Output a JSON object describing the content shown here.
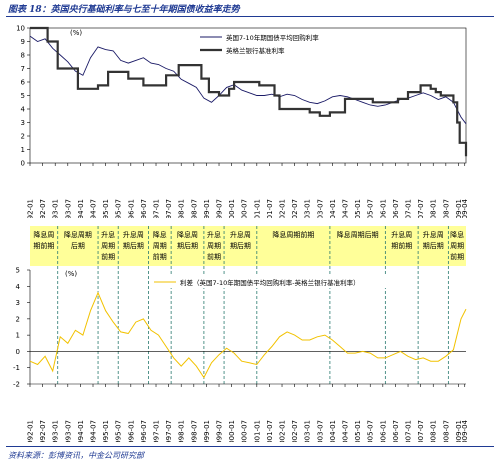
{
  "header": {
    "title": "图表 18：英国央行基础利率与七至十年期国债收益率走势"
  },
  "footer": {
    "source": "资料来源：彭博资讯，中金公司研究部"
  },
  "colors": {
    "rate_line": "#1a1a66",
    "base_rate": "#333333",
    "spread": "#f2c200",
    "band": "#ffff99",
    "divider": "#2a7a70"
  },
  "chart_data": [
    {
      "type": "line",
      "title": "",
      "unit_label": "(%)",
      "ylim": [
        0,
        10
      ],
      "yticks": [
        0,
        1,
        2,
        3,
        4,
        5,
        6,
        7,
        8,
        9,
        10
      ],
      "xlim": [
        1992.0,
        2009.3
      ],
      "xticks": [
        "1992-01",
        "1992-07",
        "1993-01",
        "1993-07",
        "1994-01",
        "1994-07",
        "1995-01",
        "1995-07",
        "1996-01",
        "1996-07",
        "1997-01",
        "1997-07",
        "1998-01",
        "1998-07",
        "1999-01",
        "1999-07",
        "2000-01",
        "2000-07",
        "2001-01",
        "2001-07",
        "2002-01",
        "2002-07",
        "2003-01",
        "2003-07",
        "2004-01",
        "2004-07",
        "2005-01",
        "2005-07",
        "2006-01",
        "2006-07",
        "2007-01",
        "2007-07",
        "2008-01",
        "2008-07",
        "2009-01",
        "2009-04"
      ],
      "series": [
        {
          "name": "英国7-10年期国债平均回购利率",
          "x": [
            1992.0,
            1992.3,
            1992.6,
            1992.9,
            1993.2,
            1993.5,
            1993.8,
            1994.1,
            1994.4,
            1994.7,
            1995.0,
            1995.3,
            1995.6,
            1995.9,
            1996.2,
            1996.5,
            1996.8,
            1997.1,
            1997.4,
            1997.7,
            1998.0,
            1998.3,
            1998.6,
            1998.9,
            1999.2,
            1999.5,
            1999.8,
            2000.1,
            2000.4,
            2000.7,
            2001.0,
            2001.3,
            2001.6,
            2001.9,
            2002.2,
            2002.5,
            2002.8,
            2003.1,
            2003.4,
            2003.7,
            2004.0,
            2004.3,
            2004.6,
            2004.9,
            2005.2,
            2005.5,
            2005.8,
            2006.1,
            2006.4,
            2006.7,
            2007.0,
            2007.3,
            2007.6,
            2007.9,
            2008.2,
            2008.5,
            2008.8,
            2009.1,
            2009.3
          ],
          "values": [
            9.4,
            9.0,
            9.2,
            8.5,
            8.0,
            7.5,
            6.8,
            6.5,
            7.8,
            8.6,
            8.4,
            8.3,
            7.6,
            7.4,
            7.6,
            7.8,
            7.4,
            7.3,
            7.0,
            6.8,
            6.2,
            5.9,
            5.6,
            4.8,
            4.5,
            5.0,
            5.6,
            5.8,
            5.4,
            5.2,
            5.0,
            5.0,
            5.1,
            4.9,
            5.1,
            5.0,
            4.7,
            4.5,
            4.4,
            4.6,
            4.9,
            5.0,
            4.9,
            4.7,
            4.5,
            4.3,
            4.2,
            4.3,
            4.5,
            4.7,
            4.8,
            5.0,
            5.2,
            5.0,
            4.7,
            4.9,
            4.5,
            3.4,
            2.9
          ]
        },
        {
          "name": "英格兰银行基准利率",
          "x": [
            1992.0,
            1992.7,
            1993.1,
            1993.9,
            1994.7,
            1995.1,
            1995.9,
            1996.5,
            1997.4,
            1997.9,
            1998.8,
            1999.1,
            1999.5,
            1999.9,
            2000.1,
            2001.1,
            2001.7,
            2001.9,
            2003.1,
            2003.5,
            2003.9,
            2004.5,
            2005.6,
            2006.6,
            2007.0,
            2007.5,
            2007.9,
            2008.1,
            2008.3,
            2008.8,
            2008.95,
            2009.05,
            2009.3
          ],
          "values": [
            10.0,
            9.0,
            7.0,
            5.5,
            5.75,
            6.75,
            6.25,
            5.75,
            6.5,
            7.25,
            6.25,
            5.25,
            5.0,
            5.5,
            6.0,
            5.75,
            5.0,
            4.0,
            3.75,
            3.5,
            3.75,
            4.75,
            4.5,
            4.75,
            5.25,
            5.75,
            5.5,
            5.25,
            5.0,
            4.5,
            3.0,
            1.5,
            0.5
          ]
        }
      ]
    },
    {
      "type": "line",
      "title": "",
      "unit_label": "(%)",
      "ylim": [
        -2,
        5
      ],
      "yticks": [
        -2,
        -1,
        0,
        1,
        2,
        3,
        4,
        5
      ],
      "xlim": [
        1992.0,
        2009.3
      ],
      "xticks": [
        "1992-01",
        "1992-07",
        "1993-01",
        "1993-07",
        "1994-01",
        "1994-07",
        "1995-01",
        "1995-07",
        "1996-01",
        "1996-07",
        "1997-01",
        "1997-07",
        "1998-01",
        "1998-07",
        "1999-01",
        "1999-07",
        "2000-01",
        "2000-07",
        "2001-01",
        "2001-07",
        "2002-01",
        "2002-07",
        "2003-01",
        "2003-07",
        "2004-01",
        "2004-07",
        "2005-01",
        "2005-07",
        "2006-01",
        "2006-07",
        "2007-01",
        "2007-07",
        "2008-01",
        "2008-07",
        "2009-01",
        "2009-04"
      ],
      "phases": [
        "降息周期前期",
        "降息周期后期",
        "升息周期前期",
        "升息周期后期",
        "降息周期前期",
        "降息周期后期",
        "升息周期前期",
        "升息周期后期",
        "降息周期前期",
        "降息周期后期",
        "升息周期前期",
        "升息周期后期",
        "降息周期前期"
      ],
      "series": [
        {
          "name": "利差（英国7-10年期国债平均回购利率-英格兰银行基准利率）",
          "x": [
            1992.0,
            1992.3,
            1992.6,
            1992.9,
            1993.2,
            1993.5,
            1993.8,
            1994.1,
            1994.4,
            1994.7,
            1995.0,
            1995.3,
            1995.6,
            1995.9,
            1996.2,
            1996.5,
            1996.8,
            1997.1,
            1997.4,
            1997.7,
            1998.0,
            1998.3,
            1998.6,
            1998.9,
            1999.2,
            1999.5,
            1999.8,
            2000.1,
            2000.4,
            2000.7,
            2001.0,
            2001.3,
            2001.6,
            2001.9,
            2002.2,
            2002.5,
            2002.8,
            2003.1,
            2003.4,
            2003.7,
            2004.0,
            2004.3,
            2004.6,
            2004.9,
            2005.2,
            2005.5,
            2005.8,
            2006.1,
            2006.4,
            2006.7,
            2007.0,
            2007.3,
            2007.6,
            2007.9,
            2008.2,
            2008.5,
            2008.8,
            2009.1,
            2009.3
          ],
          "values": [
            -0.6,
            -0.8,
            -0.3,
            -1.2,
            0.9,
            0.5,
            1.3,
            1.0,
            2.5,
            3.6,
            2.5,
            1.8,
            1.2,
            1.1,
            1.8,
            2.0,
            1.3,
            1.0,
            0.3,
            -0.4,
            -0.9,
            -0.4,
            -0.9,
            -1.6,
            -0.7,
            -0.2,
            0.2,
            -0.1,
            -0.6,
            -0.7,
            -0.8,
            -0.2,
            0.3,
            0.9,
            1.2,
            1.0,
            0.7,
            0.7,
            0.9,
            1.0,
            0.7,
            0.3,
            -0.1,
            -0.1,
            0.0,
            -0.1,
            -0.4,
            -0.4,
            -0.2,
            0.0,
            -0.3,
            -0.5,
            -0.4,
            -0.6,
            -0.6,
            -0.3,
            0.1,
            2.0,
            2.6
          ]
        }
      ]
    }
  ]
}
